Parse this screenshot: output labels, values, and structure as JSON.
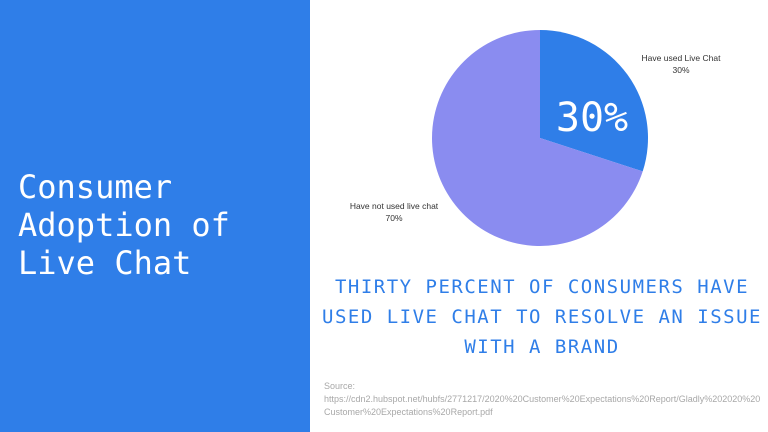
{
  "slide": {
    "title": "Consumer\nAdoption of\nLive Chat",
    "headline": "THIRTY PERCENT OF CONSUMERS HAVE USED LIVE CHAT TO RESOLVE AN ISSUE WITH A BRAND",
    "source_label": "Source:",
    "source_url": "https://cdn2.hubspot.net/hubfs/2771217/2020%20Customer%20Expectations%20Report/Gladly%202020%20Customer%20Expectations%20Report.pdf"
  },
  "colors": {
    "panel": "#2f7ee8",
    "used": "#2f7ee8",
    "not_used": "#8a8cf0"
  },
  "chart_data": {
    "type": "pie",
    "title": "",
    "highlight_label": "30%",
    "slices": [
      {
        "label": "Have used Live Chat",
        "value": 30,
        "value_label": "30%",
        "color": "#2f7ee8"
      },
      {
        "label": "Have not used live chat",
        "value": 70,
        "value_label": "70%",
        "color": "#8a8cf0"
      }
    ],
    "start_angle_deg": 0,
    "direction": "clockwise",
    "legend": "none"
  }
}
